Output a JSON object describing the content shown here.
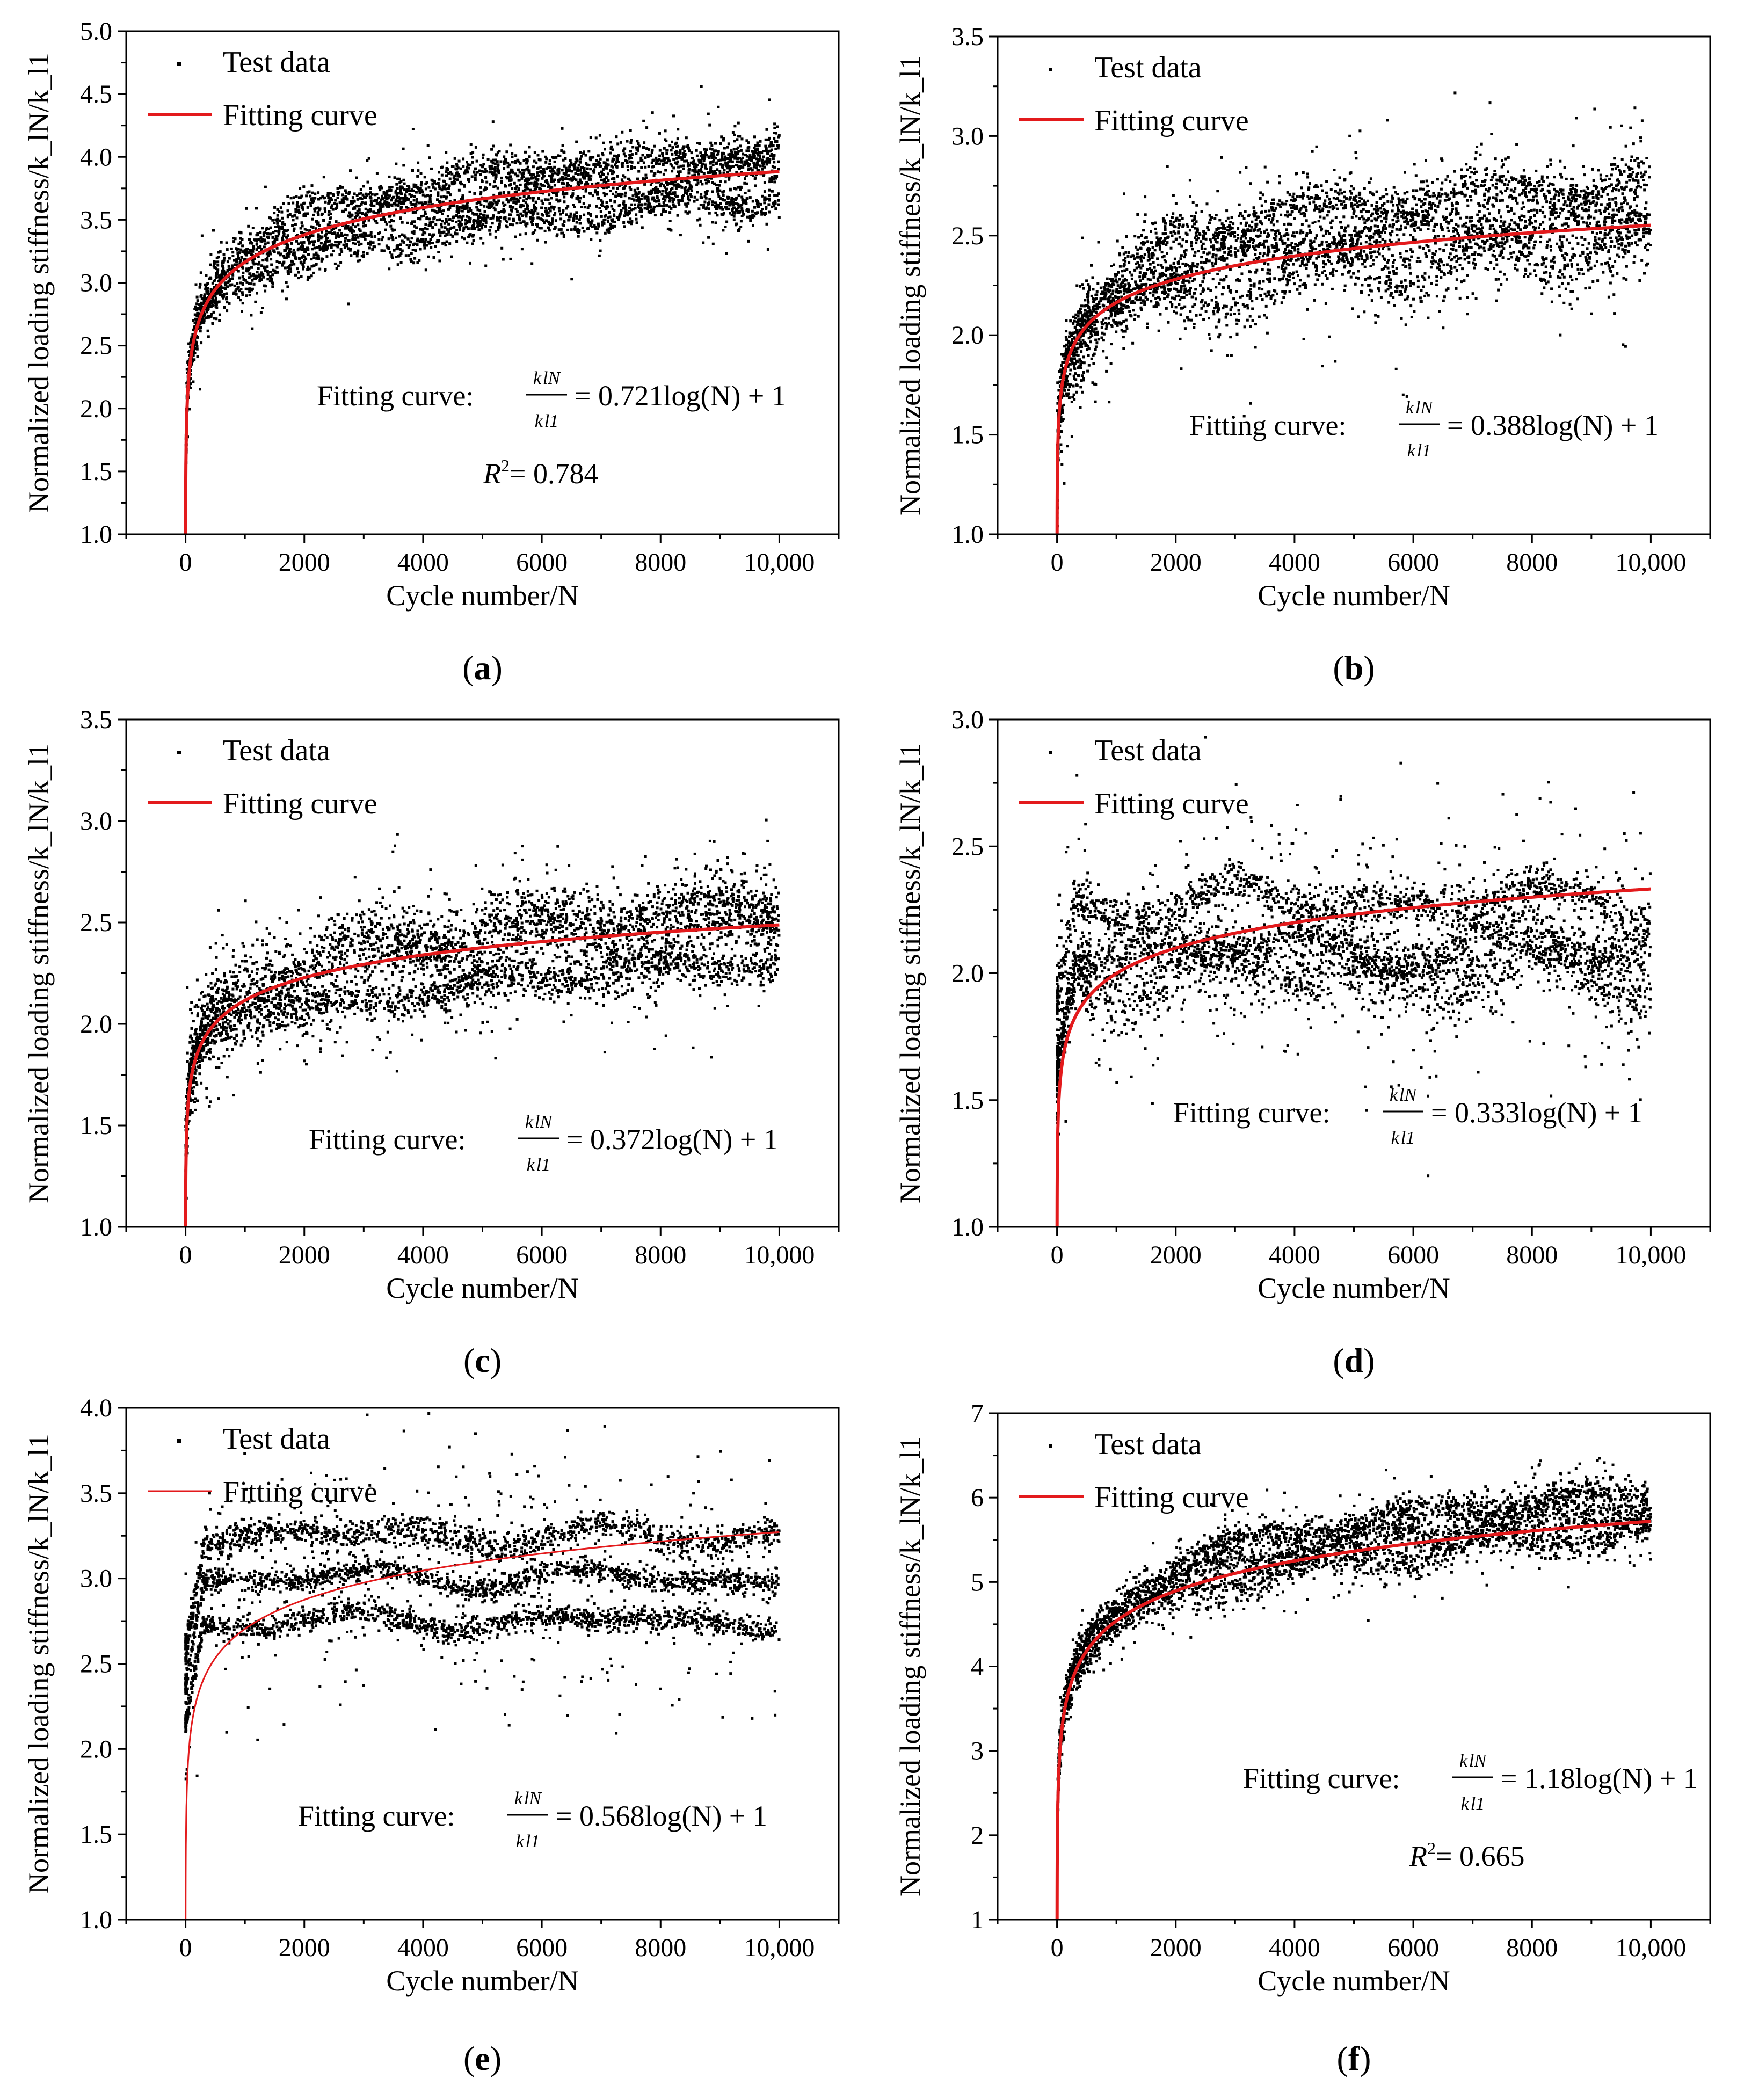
{
  "chart_data": [
    {
      "panel_label": "a",
      "type": "scatter",
      "xlabel": "Cycle number/N",
      "ylabel": "Normalized loading stiffness/k_lN/k_l1",
      "xlim": [
        -1000,
        11000
      ],
      "ylim": [
        1.0,
        5.0
      ],
      "xticks": [
        0,
        2000,
        4000,
        6000,
        8000,
        10000
      ],
      "xtick_labels": [
        "0",
        "2000",
        "4000",
        "6000",
        "8000",
        "10,000"
      ],
      "yticks": [
        1.0,
        1.5,
        2.0,
        2.5,
        3.0,
        3.5,
        4.0,
        4.5,
        5.0
      ],
      "ytick_labels": [
        "1.0",
        "1.5",
        "2.0",
        "2.5",
        "3.0",
        "3.5",
        "4.0",
        "4.5",
        "5.0"
      ],
      "legend": [
        {
          "name": "Test data",
          "style": "marker"
        },
        {
          "name": "Fitting curve",
          "style": "line"
        }
      ],
      "fit": {
        "coef": 0.721,
        "equation_prefix": "Fitting curve:",
        "equation_rhs": "= 0.721log(N) + 1",
        "r2_text": "= 0.784"
      },
      "series": [
        {
          "name": "Test data",
          "kind": "scatter",
          "bands": [
            {
              "offset": 0.0,
              "spread": 0.18
            },
            {
              "offset": 0.17,
              "spread": 0.12
            },
            {
              "offset": -0.2,
              "spread": 0.14
            }
          ],
          "noise_scale": 0.18
        },
        {
          "name": "Fitting curve",
          "kind": "line",
          "equation": "y = 0.721*log10(N) + 1"
        }
      ]
    },
    {
      "panel_label": "b",
      "type": "scatter",
      "xlabel": "Cycle number/N",
      "ylabel": "Normalized loading stiffness/k_lN/k_l1",
      "xlim": [
        -1000,
        11000
      ],
      "ylim": [
        1.0,
        3.5
      ],
      "xticks": [
        0,
        2000,
        4000,
        6000,
        8000,
        10000
      ],
      "xtick_labels": [
        "0",
        "2000",
        "4000",
        "6000",
        "8000",
        "10,000"
      ],
      "yticks": [
        1.0,
        1.5,
        2.0,
        2.5,
        3.0,
        3.5
      ],
      "ytick_labels": [
        "1.0",
        "1.5",
        "2.0",
        "2.5",
        "3.0",
        "3.5"
      ],
      "legend": [
        {
          "name": "Test data",
          "style": "marker"
        },
        {
          "name": "Fitting curve",
          "style": "line"
        }
      ],
      "fit": {
        "coef": 0.388,
        "equation_prefix": "Fitting curve:",
        "equation_rhs": "= 0.388log(N) + 1",
        "r2_text": null
      },
      "series": [
        {
          "name": "Test data",
          "kind": "scatter",
          "bands": [
            {
              "offset": 0.05,
              "spread": 0.1
            },
            {
              "offset": 0.22,
              "spread": 0.1
            },
            {
              "offset": -0.1,
              "spread": 0.16
            }
          ],
          "noise_scale": 0.2
        },
        {
          "name": "Fitting curve",
          "kind": "line",
          "equation": "y = 0.388*log10(N) + 1"
        }
      ]
    },
    {
      "panel_label": "c",
      "type": "scatter",
      "xlabel": "Cycle number/N",
      "ylabel": "Normalized loading stiffness/k_lN/k_l1",
      "xlim": [
        -1000,
        11000
      ],
      "ylim": [
        1.0,
        3.5
      ],
      "xticks": [
        0,
        2000,
        4000,
        6000,
        8000,
        10000
      ],
      "xtick_labels": [
        "0",
        "2000",
        "4000",
        "6000",
        "8000",
        "10,000"
      ],
      "yticks": [
        1.0,
        1.5,
        2.0,
        2.5,
        3.0,
        3.5
      ],
      "ytick_labels": [
        "1.0",
        "1.5",
        "2.0",
        "2.5",
        "3.0",
        "3.5"
      ],
      "legend": [
        {
          "name": "Test data",
          "style": "marker"
        },
        {
          "name": "Fitting curve",
          "style": "line"
        }
      ],
      "fit": {
        "coef": 0.372,
        "equation_prefix": "Fitting curve:",
        "equation_rhs": "= 0.372log(N) + 1",
        "r2_text": null
      },
      "series": [
        {
          "name": "Test data",
          "kind": "scatter",
          "bands": [
            {
              "offset": 0.08,
              "spread": 0.12
            },
            {
              "offset": -0.18,
              "spread": 0.08
            },
            {
              "offset": 0.0,
              "spread": 0.2
            }
          ],
          "noise_scale": 0.18
        },
        {
          "name": "Fitting curve",
          "kind": "line",
          "equation": "y = 0.372*log10(N) + 1"
        }
      ]
    },
    {
      "panel_label": "d",
      "type": "scatter",
      "xlabel": "Cycle number/N",
      "ylabel": "Normalized loading stiffness/k_lN/k_l1",
      "xlim": [
        -1000,
        11000
      ],
      "ylim": [
        1.0,
        3.0
      ],
      "xticks": [
        0,
        2000,
        4000,
        6000,
        8000,
        10000
      ],
      "xtick_labels": [
        "0",
        "2000",
        "4000",
        "6000",
        "8000",
        "10,000"
      ],
      "yticks": [
        1.0,
        1.5,
        2.0,
        2.5,
        3.0
      ],
      "ytick_labels": [
        "1.0",
        "1.5",
        "2.0",
        "2.5",
        "3.0"
      ],
      "legend": [
        {
          "name": "Test data",
          "style": "marker"
        },
        {
          "name": "Fitting curve",
          "style": "line"
        }
      ],
      "fit": {
        "coef": 0.333,
        "equation_prefix": "Fitting curve:",
        "equation_rhs": "= 0.333log(N) + 1",
        "r2_text": null
      },
      "series": [
        {
          "name": "Test data",
          "kind": "scatter",
          "bands": [
            {
              "offset": 0.08,
              "spread": 0.08
            },
            {
              "offset": -0.1,
              "spread": 0.08
            },
            {
              "offset": -0.2,
              "spread": 0.12
            }
          ],
          "noise_scale": 0.22,
          "flat_level": 2.2
        },
        {
          "name": "Fitting curve",
          "kind": "line",
          "equation": "y = 0.333*log10(N) + 1"
        }
      ]
    },
    {
      "panel_label": "e",
      "type": "scatter",
      "xlabel": "Cycle number/N",
      "ylabel": "Normalized loading stiffness/k_lN/k_l1",
      "xlim": [
        -1000,
        11000
      ],
      "ylim": [
        1.0,
        4.0
      ],
      "xticks": [
        0,
        2000,
        4000,
        6000,
        8000,
        10000
      ],
      "xtick_labels": [
        "0",
        "2000",
        "4000",
        "6000",
        "8000",
        "10,000"
      ],
      "yticks": [
        1.0,
        1.5,
        2.0,
        2.5,
        3.0,
        3.5,
        4.0
      ],
      "ytick_labels": [
        "1.0",
        "1.5",
        "2.0",
        "2.5",
        "3.0",
        "3.5",
        "4.0"
      ],
      "legend": [
        {
          "name": "Test data",
          "style": "marker"
        },
        {
          "name": "Fitting curve",
          "style": "thinline"
        }
      ],
      "fit": {
        "coef": 0.568,
        "equation_prefix": "Fitting curve:",
        "equation_rhs": "= 0.568log(N) + 1",
        "r2_text": null
      },
      "series": [
        {
          "name": "Test data",
          "kind": "scatter",
          "bands": [
            {
              "offset": 0.25,
              "spread": 0.08
            },
            {
              "offset": 0.0,
              "spread": 0.06
            },
            {
              "offset": -0.25,
              "spread": 0.06
            }
          ],
          "noise_scale": 0.3,
          "flat_level": 3.0
        },
        {
          "name": "Fitting curve",
          "kind": "line",
          "equation": "y = 0.568*log10(N) + 1"
        }
      ]
    },
    {
      "panel_label": "f",
      "type": "scatter",
      "xlabel": "Cycle number/N",
      "ylabel": "Normalized loading stiffness/k_lN/k_l1",
      "xlim": [
        -1000,
        11000
      ],
      "ylim": [
        1,
        7
      ],
      "xticks": [
        0,
        2000,
        4000,
        6000,
        8000,
        10000
      ],
      "xtick_labels": [
        "0",
        "2000",
        "4000",
        "6000",
        "8000",
        "10,000"
      ],
      "yticks": [
        1,
        2,
        3,
        4,
        5,
        6,
        7
      ],
      "ytick_labels": [
        "1",
        "2",
        "3",
        "4",
        "5",
        "6",
        "7"
      ],
      "legend": [
        {
          "name": "Test data",
          "style": "marker"
        },
        {
          "name": "Fitting curve",
          "style": "line"
        }
      ],
      "fit": {
        "coef": 1.18,
        "equation_prefix": "Fitting curve:",
        "equation_rhs": "= 1.18log(N) + 1",
        "r2_text": "= 0.665"
      },
      "series": [
        {
          "name": "Test data",
          "kind": "scatter",
          "bands": [
            {
              "offset": 0.1,
              "spread": 0.18
            },
            {
              "offset": 0.35,
              "spread": 0.15
            },
            {
              "offset": -0.1,
              "spread": 0.2
            }
          ],
          "noise_scale": 0.2
        },
        {
          "name": "Fitting curve",
          "kind": "line",
          "equation": "y = 1.18*log10(N) + 1"
        }
      ]
    }
  ],
  "colors": {
    "fit_line": "#e31a1c",
    "points": "#000000",
    "axes": "#000000",
    "background": "#ffffff"
  }
}
